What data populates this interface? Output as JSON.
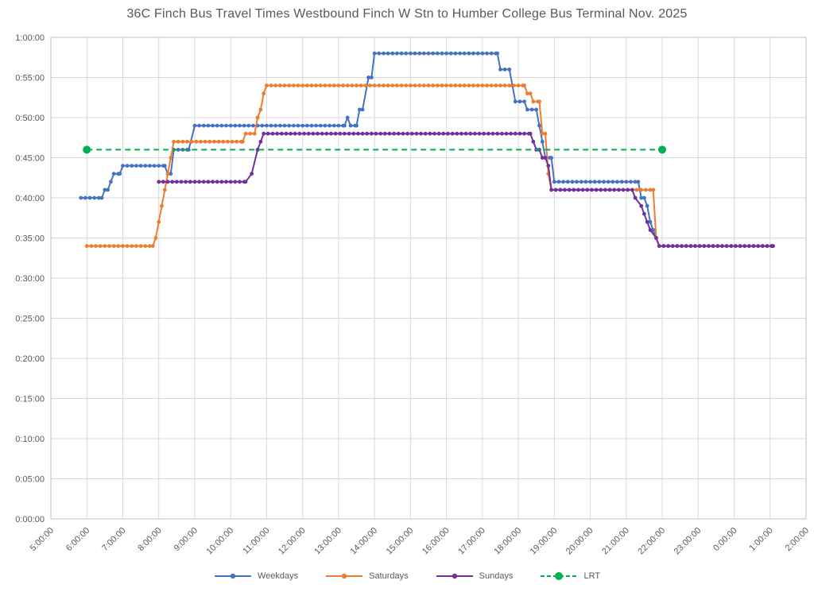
{
  "chart_data": {
    "type": "line",
    "title": "36C Finch Bus Travel Times Westbound Finch W Stn to Humber College Bus Terminal Nov. 2025",
    "xlabel": "",
    "ylabel": "",
    "x_axis": {
      "tick_labels": [
        "5:00:00",
        "6:00:00",
        "7:00:00",
        "8:00:00",
        "9:00:00",
        "10:00:00",
        "11:00:00",
        "12:00:00",
        "13:00:00",
        "14:00:00",
        "15:00:00",
        "16:00:00",
        "17:00:00",
        "18:00:00",
        "19:00:00",
        "20:00:00",
        "21:00:00",
        "22:00:00",
        "23:00:00",
        "0:00:00",
        "1:00:00",
        "2:00:00"
      ],
      "range_hours": [
        5,
        26
      ],
      "meaning": "departure time of day (axis wraps past midnight)"
    },
    "y_axis": {
      "tick_labels_top_to_bottom": [
        "1:00:00",
        "0:55:00",
        "0:50:00",
        "0:45:00",
        "0:40:00",
        "0:35:00",
        "0:30:00",
        "0:25:00",
        "0:20:00",
        "0:15:00",
        "0:10:00",
        "0:05:00",
        "0:00:00"
      ],
      "range_minutes": [
        0,
        60
      ],
      "meaning": "travel time h:mm:ss"
    },
    "grid": true,
    "grid_color": "#D9D9D9",
    "border_color": "#BFBFBF",
    "text_color": "#595959",
    "legend_position": "bottom-center",
    "series": [
      {
        "name": "Weekdays",
        "color": "#4472C4",
        "line_style": "solid",
        "marker": "circle",
        "value_unit": "minutes",
        "segments": [
          {
            "from": "5:50",
            "to": "6:25",
            "min": 40
          },
          {
            "from": "6:30",
            "to": "6:35",
            "min": 41
          },
          {
            "from": "6:40",
            "to": "6:40",
            "min": 42
          },
          {
            "from": "6:45",
            "to": "6:55",
            "min": 43
          },
          {
            "from": "7:00",
            "to": "8:10",
            "min": 44
          },
          {
            "from": "8:15",
            "to": "8:20",
            "min": 43
          },
          {
            "from": "8:25",
            "to": "8:50",
            "min": 46
          },
          {
            "from": "9:00",
            "to": "13:10",
            "min": 49
          },
          {
            "from": "13:15",
            "to": "13:15",
            "min": 50
          },
          {
            "from": "13:20",
            "to": "13:30",
            "min": 49
          },
          {
            "from": "13:35",
            "to": "13:40",
            "min": 51
          },
          {
            "from": "13:50",
            "to": "13:55",
            "min": 55
          },
          {
            "from": "14:00",
            "to": "17:25",
            "min": 58
          },
          {
            "from": "17:30",
            "to": "17:45",
            "min": 56
          },
          {
            "from": "17:50",
            "to": "17:50",
            "min": 54
          },
          {
            "from": "17:55",
            "to": "18:10",
            "min": 52
          },
          {
            "from": "18:15",
            "to": "18:30",
            "min": 51
          },
          {
            "from": "18:35",
            "to": "18:35",
            "min": 49
          },
          {
            "from": "18:40",
            "to": "18:40",
            "min": 47
          },
          {
            "from": "18:45",
            "to": "18:55",
            "min": 45
          },
          {
            "from": "19:00",
            "to": "21:20",
            "min": 42
          },
          {
            "from": "21:25",
            "to": "21:30",
            "min": 40
          },
          {
            "from": "21:35",
            "to": "21:35",
            "min": 39
          },
          {
            "from": "21:40",
            "to": "21:40",
            "min": 37
          },
          {
            "from": "21:45",
            "to": "21:45",
            "min": 36
          },
          {
            "from": "21:50",
            "to": "21:50",
            "min": 35
          },
          {
            "from": "21:55",
            "to": "1:05",
            "min": 34
          }
        ]
      },
      {
        "name": "Saturdays",
        "color": "#ED7D31",
        "line_style": "solid",
        "marker": "circle",
        "value_unit": "minutes",
        "segments": [
          {
            "from": "6:00",
            "to": "7:50",
            "min": 34
          },
          {
            "from": "7:55",
            "to": "7:55",
            "min": 35
          },
          {
            "from": "8:00",
            "to": "8:00",
            "min": 37
          },
          {
            "from": "8:05",
            "to": "8:05",
            "min": 39
          },
          {
            "from": "8:10",
            "to": "8:10",
            "min": 41
          },
          {
            "from": "8:15",
            "to": "8:15",
            "min": 43
          },
          {
            "from": "8:20",
            "to": "8:20",
            "min": 45
          },
          {
            "from": "8:25",
            "to": "10:20",
            "min": 47
          },
          {
            "from": "10:25",
            "to": "10:40",
            "min": 48
          },
          {
            "from": "10:45",
            "to": "10:45",
            "min": 50
          },
          {
            "from": "10:50",
            "to": "10:50",
            "min": 51
          },
          {
            "from": "10:55",
            "to": "10:55",
            "min": 53
          },
          {
            "from": "11:00",
            "to": "18:10",
            "min": 54
          },
          {
            "from": "18:15",
            "to": "18:20",
            "min": 53
          },
          {
            "from": "18:25",
            "to": "18:35",
            "min": 52
          },
          {
            "from": "18:40",
            "to": "18:45",
            "min": 48
          },
          {
            "from": "18:50",
            "to": "18:50",
            "min": 43
          },
          {
            "from": "18:55",
            "to": "21:45",
            "min": 41
          },
          {
            "from": "21:50",
            "to": "21:50",
            "min": 35
          },
          {
            "from": "21:55",
            "to": "1:05",
            "min": 34
          }
        ]
      },
      {
        "name": "Sundays",
        "color": "#7030A0",
        "line_style": "solid",
        "marker": "circle",
        "value_unit": "minutes",
        "segments": [
          {
            "from": "8:00",
            "to": "10:25",
            "min": 42
          },
          {
            "from": "10:35",
            "to": "10:35",
            "min": 43
          },
          {
            "from": "10:45",
            "to": "10:45",
            "min": 46
          },
          {
            "from": "10:50",
            "to": "10:50",
            "min": 47
          },
          {
            "from": "10:55",
            "to": "18:20",
            "min": 48
          },
          {
            "from": "18:25",
            "to": "18:25",
            "min": 47
          },
          {
            "from": "18:30",
            "to": "18:35",
            "min": 46
          },
          {
            "from": "18:40",
            "to": "18:45",
            "min": 45
          },
          {
            "from": "18:50",
            "to": "18:50",
            "min": 44
          },
          {
            "from": "18:55",
            "to": "21:10",
            "min": 41
          },
          {
            "from": "21:15",
            "to": "21:15",
            "min": 40
          },
          {
            "from": "21:25",
            "to": "21:25",
            "min": 39
          },
          {
            "from": "21:30",
            "to": "21:30",
            "min": 38
          },
          {
            "from": "21:35",
            "to": "21:35",
            "min": 37
          },
          {
            "from": "21:40",
            "to": "21:40",
            "min": 36
          },
          {
            "from": "21:50",
            "to": "21:50",
            "min": 35
          },
          {
            "from": "21:55",
            "to": "1:05",
            "min": 34
          }
        ]
      },
      {
        "name": "LRT",
        "color": "#00B050",
        "line_style": "dashed",
        "marker": "endpoints-only",
        "value_unit": "minutes",
        "segments": [
          {
            "from": "6:00",
            "to": "22:00",
            "min": 46
          }
        ]
      }
    ]
  }
}
